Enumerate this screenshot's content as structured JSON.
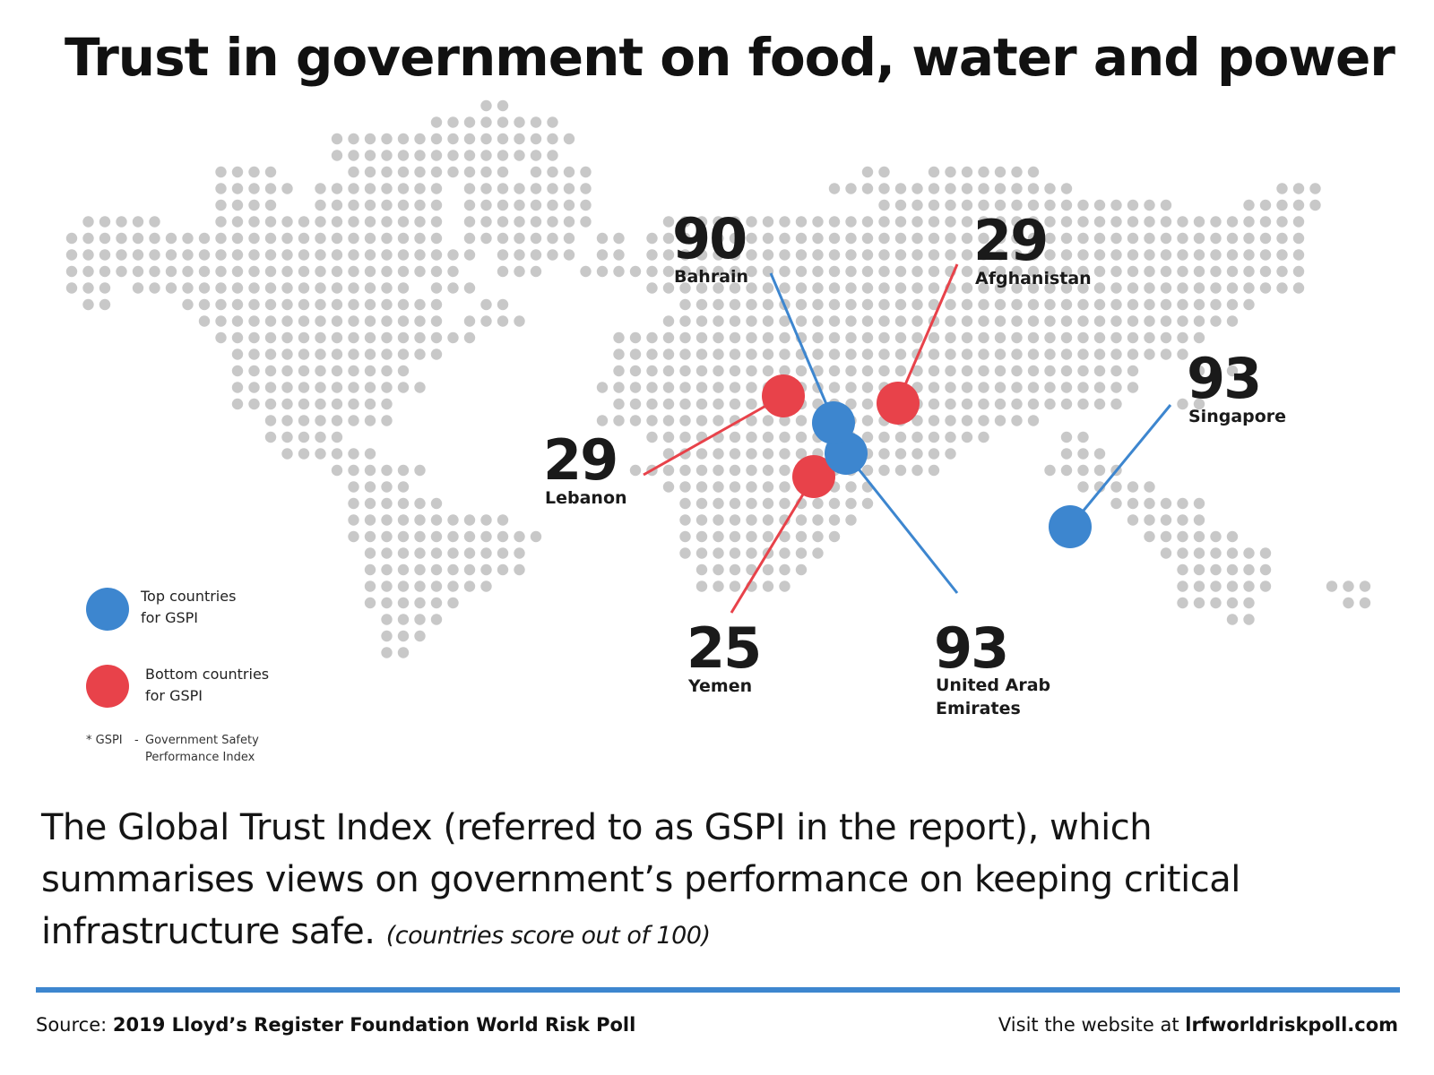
{
  "title": "Trust in government on food, water and power",
  "colors": {
    "top": "#3d86cf",
    "bottom": "#e8424a",
    "dot": "#c8c8c8",
    "rule": "#3d86cf"
  },
  "countries": [
    {
      "name": "Bahrain",
      "score": "90",
      "group": "top"
    },
    {
      "name": "Afghanistan",
      "score": "29",
      "group": "bottom"
    },
    {
      "name": "Singapore",
      "score": "93",
      "group": "top"
    },
    {
      "name": "Lebanon",
      "score": "29",
      "group": "bottom"
    },
    {
      "name": "Yemen",
      "score": "25",
      "group": "bottom"
    },
    {
      "name_lines": [
        "United Arab",
        "Emirates"
      ],
      "score": "93",
      "group": "top"
    }
  ],
  "legend": {
    "top_lines": [
      "Top countries",
      "for GSPI"
    ],
    "bottom_lines": [
      "Bottom countries",
      "for GSPI"
    ],
    "note_key": "* GSPI",
    "note_dash": "-",
    "note_lines": [
      "Government Safety",
      "Performance Index"
    ]
  },
  "description": {
    "main": "The Global Trust Index (referred to as GSPI in the report), which summarises views on government’s performance on keeping critical infrastructure safe.",
    "note": "(countries score out of 100)"
  },
  "footer": {
    "source_label": "Source:",
    "source_value": "2019 Lloyd’s Register Foundation World Risk Poll",
    "visit_label": "Visit the website at",
    "visit_value": "lrfworldriskpoll.com"
  }
}
